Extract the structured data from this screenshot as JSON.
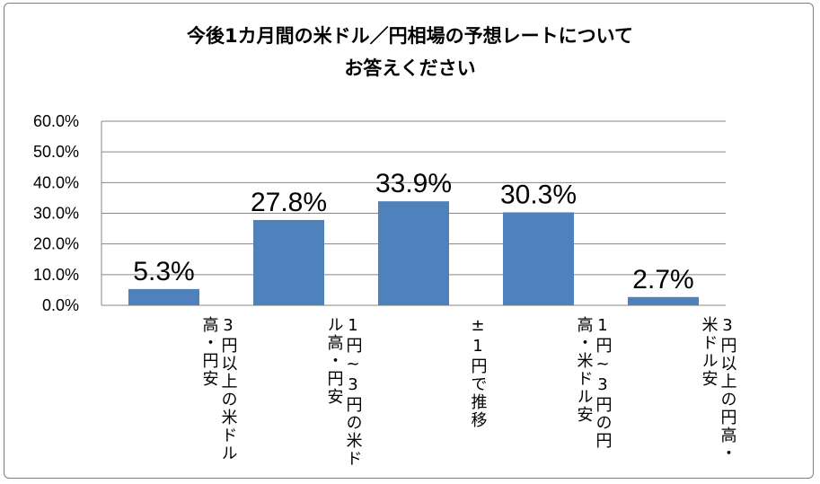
{
  "chart_data": {
    "type": "bar",
    "title_lines": [
      "今後1カ月間の米ドル／円相場の予想レートについて",
      "お答えください"
    ],
    "categories": [
      "3円以上の米ドル高・円安",
      "1円~3円の米ドル高・円安",
      "±1円で推移",
      "1円~3円の円高・米ドル安",
      "3円以上の円高・米ドル安"
    ],
    "values": [
      5.3,
      27.8,
      33.9,
      30.3,
      2.7
    ],
    "data_labels": [
      "5.3%",
      "27.8%",
      "33.9%",
      "30.3%",
      "2.7%"
    ],
    "y_ticks": [
      "0.0%",
      "10.0%",
      "20.0%",
      "30.0%",
      "40.0%",
      "50.0%",
      "60.0%"
    ],
    "ylim": [
      0,
      60
    ],
    "xlabel": "",
    "ylabel": "",
    "grid": true,
    "bar_color": "#4f81bd",
    "grid_color": "#868686"
  }
}
